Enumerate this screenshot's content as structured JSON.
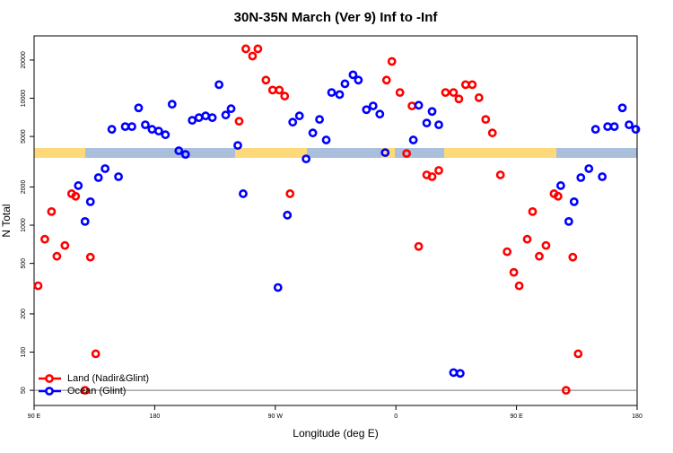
{
  "chart_data": {
    "type": "scatter",
    "title": "30N-35N March (Ver 9)   Inf to -Inf",
    "x_label": "Longitude (deg E)",
    "y_label": "N Total",
    "xlim": [
      90,
      540
    ],
    "xticks": [
      {
        "value": 90,
        "label": "90 E"
      },
      180,
      {
        "value": 270,
        "label": "90 W"
      },
      {
        "value": 360,
        "label": "0"
      },
      {
        "value": 450,
        "label": "90 E"
      },
      {
        "value": 540,
        "label": "180"
      }
    ],
    "ylim": [
      38,
      31000
    ],
    "y_log": true,
    "yticks": [
      50,
      100,
      200,
      500,
      1000,
      2000,
      5000,
      10000,
      20000
    ],
    "legend": "bottom-left",
    "series": [
      {
        "name": "Land (Nadir&Glint)",
        "color": "#ff0000",
        "x": [
          93,
          98,
          103,
          107,
          113,
          118,
          121,
          128,
          132,
          136,
          243,
          248,
          253,
          257,
          263,
          268,
          273,
          277,
          281,
          353,
          357,
          363,
          368,
          372,
          377,
          383,
          387,
          392,
          397,
          403,
          407,
          412,
          417,
          422,
          427,
          432,
          438,
          443,
          448,
          452,
          458,
          462,
          467,
          472,
          478,
          481,
          487,
          492,
          496
        ],
        "values": [
          333,
          775,
          1280,
          569,
          692,
          1770,
          1690,
          50,
          560,
          97,
          6590,
          24500,
          21500,
          24500,
          13900,
          11600,
          11600,
          10400,
          1770,
          13900,
          19500,
          11100,
          3670,
          8700,
          680,
          2490,
          2410,
          2700,
          11100,
          11100,
          9880,
          12800,
          12800,
          10100,
          6810,
          5330,
          2490,
          618,
          425,
          333,
          775,
          1280,
          569,
          692,
          1770,
          1690,
          50,
          560,
          97
        ]
      },
      {
        "name": "Ocean (Glint)",
        "color": "#0000ff",
        "x": [
          123,
          128,
          132,
          138,
          143,
          148,
          153,
          158,
          163,
          168,
          173,
          178,
          183,
          188,
          193,
          198,
          203,
          208,
          213,
          218,
          223,
          228,
          233,
          237,
          242,
          246,
          272,
          279,
          283,
          288,
          293,
          298,
          303,
          308,
          312,
          318,
          322,
          328,
          332,
          338,
          343,
          348,
          352,
          373,
          377,
          383,
          387,
          392,
          403,
          408,
          483,
          489,
          493,
          498,
          504,
          509,
          514,
          518,
          523,
          529,
          534,
          539
        ],
        "values": [
          2050,
          1070,
          1530,
          2370,
          2790,
          5690,
          2410,
          5980,
          5980,
          8400,
          6180,
          5690,
          5510,
          5160,
          8970,
          3860,
          3610,
          6700,
          7030,
          7260,
          7030,
          12800,
          7380,
          8270,
          4250,
          1770,
          323,
          1200,
          6480,
          7260,
          3330,
          5330,
          6810,
          4690,
          11100,
          10700,
          13000,
          15300,
          13900,
          8130,
          8700,
          7500,
          3730,
          4690,
          8810,
          6380,
          7870,
          6180,
          69,
          68,
          2050,
          1070,
          1530,
          2370,
          2790,
          5690,
          2410,
          5980,
          5980,
          8400,
          6180,
          5690
        ]
      }
    ]
  }
}
